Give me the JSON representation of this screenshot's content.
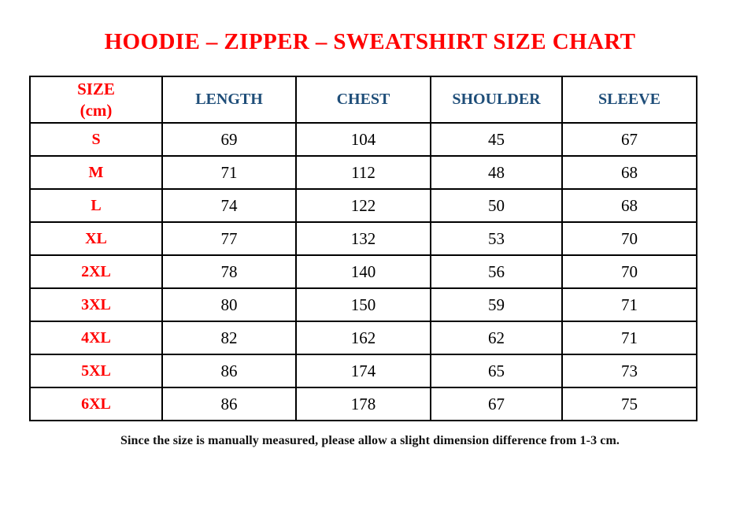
{
  "page": {
    "stray_mark": ".",
    "title": "HOODIE – ZIPPER – SWEATSHIRT SIZE CHART",
    "footnote": "Since the size is manually measured, please allow a slight dimension difference from 1-3 cm."
  },
  "colors": {
    "title_red": "#FF0000",
    "size_column_red": "#FF0000",
    "header_blue": "#1F4E79",
    "body_text": "#000000",
    "table_border": "#000000",
    "background": "#FFFFFF"
  },
  "chart_data": {
    "type": "table",
    "title": "HOODIE – ZIPPER – SWEATSHIRT SIZE CHART",
    "unit": "cm",
    "columns": [
      "SIZE\n(cm)",
      "LENGTH",
      "CHEST",
      "SHOULDER",
      "SLEEVE"
    ],
    "rows": [
      [
        "S",
        "69",
        "104",
        "45",
        "67"
      ],
      [
        "M",
        "71",
        "112",
        "48",
        "68"
      ],
      [
        "L",
        "74",
        "122",
        "50",
        "68"
      ],
      [
        "XL",
        "77",
        "132",
        "53",
        "70"
      ],
      [
        "2XL",
        "78",
        "140",
        "56",
        "70"
      ],
      [
        "3XL",
        "80",
        "150",
        "59",
        "71"
      ],
      [
        "4XL",
        "82",
        "162",
        "62",
        "71"
      ],
      [
        "5XL",
        "86",
        "174",
        "65",
        "73"
      ],
      [
        "6XL",
        "86",
        "178",
        "67",
        "75"
      ]
    ],
    "note": "Since the size is manually measured, please allow a slight dimension difference from 1-3 cm.",
    "layout": {
      "grid": "full black borders, all cells",
      "header_text_color": "#1F4E79",
      "size_labels_color": "#FF0000"
    }
  }
}
